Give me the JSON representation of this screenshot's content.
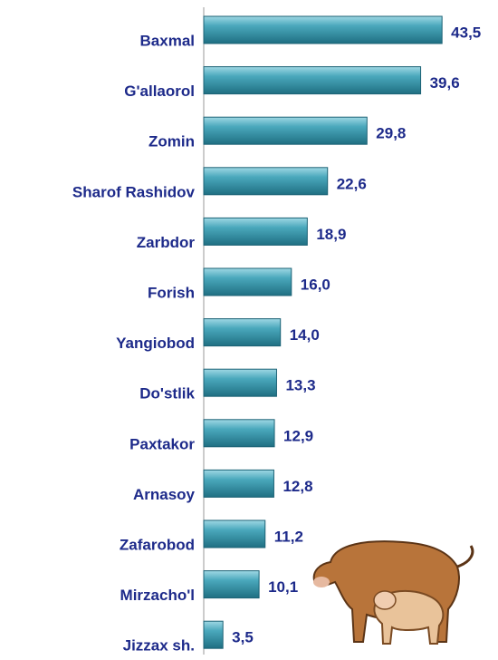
{
  "chart_data": {
    "type": "bar",
    "orientation": "horizontal",
    "categories": [
      "Baxmal",
      "G'allaorol",
      "Zomin",
      "Sharof Rashidov",
      "Zarbdor",
      "Forish",
      "Yangiobod",
      "Do'stlik",
      "Paxtakor",
      "Arnasoy",
      "Zafarobod",
      "Mirzacho'l",
      "Jizzax sh."
    ],
    "values": [
      43.5,
      39.6,
      29.8,
      22.6,
      18.9,
      16.0,
      14.0,
      13.3,
      12.9,
      12.8,
      11.2,
      10.1,
      3.5
    ],
    "value_labels": [
      "43,5",
      "39,6",
      "29,8",
      "22,6",
      "18,9",
      "16,0",
      "14,0",
      "13,3",
      "12,9",
      "12,8",
      "11,2",
      "10,1",
      "3,5"
    ],
    "color": "#4aa8bc"
  }
}
